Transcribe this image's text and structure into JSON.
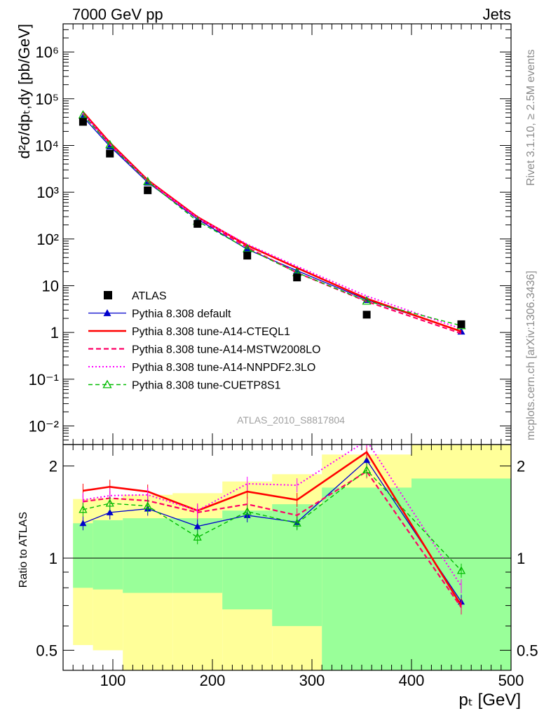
{
  "header": {
    "left": "7000 GeV pp",
    "right": "Jets"
  },
  "side_labels": {
    "rivet": "Rivet 3.1.10, ≥ 2.5M events",
    "mcplots": "mcplots.cern.ch [arXiv:1306.3436]"
  },
  "analysis_id": "ATLAS_2010_S8817804",
  "chart_data": [
    {
      "type": "scatter",
      "panel": "main",
      "ylabel": "d²σ/dpₜ,dy [pb/GeV]",
      "yscale": "log",
      "ylim": [
        0.004,
        4000000
      ],
      "xlim": [
        50,
        500
      ],
      "y_tick_labels": [
        "10⁻²",
        "10⁻¹",
        "1",
        "10",
        "10²",
        "10³",
        "10⁴",
        "10⁵",
        "10⁶"
      ],
      "x": [
        70,
        97,
        135,
        185,
        235,
        285,
        355,
        450
      ],
      "legend_position": "lower-left",
      "series": [
        {
          "name": "ATLAS",
          "color": "#000000",
          "style": "data-square",
          "values": [
            32000,
            6700,
            1100,
            210,
            44,
            15,
            2.4,
            1.5
          ]
        },
        {
          "name": "Pythia 8.308 default",
          "color": "#0000cc",
          "style": "solid-triangle",
          "values": [
            41000,
            9600,
            1620,
            265,
            60,
            21,
            5.0,
            1.05
          ]
        },
        {
          "name": "Pythia 8.308 tune-A14-CTEQL1",
          "color": "#ff0000",
          "style": "solid-thick",
          "values": [
            52000,
            11500,
            1820,
            295,
            73,
            24,
            5.3,
            1.05
          ]
        },
        {
          "name": "Pythia 8.308 tune-A14-MSTW2008LO",
          "color": "#ff0066",
          "style": "dashed",
          "values": [
            47000,
            10600,
            1700,
            280,
            66,
            19,
            4.6,
            0.95
          ]
        },
        {
          "name": "Pythia 8.308 tune-A14-NNPDF2.3LO",
          "color": "#ff00ff",
          "style": "dotted",
          "values": [
            50000,
            10800,
            1760,
            285,
            77,
            26,
            6.0,
            1.2
          ]
        },
        {
          "name": "Pythia 8.308 tune-CUETP8S1",
          "color": "#00bb00",
          "style": "dashed-open-triangle",
          "values": [
            45000,
            10400,
            1700,
            240,
            62,
            19,
            4.7,
            1.4
          ]
        }
      ]
    },
    {
      "type": "line",
      "panel": "ratio",
      "ylabel": "Ratio to ATLAS",
      "xlabel": "pₜ [GeV]",
      "yscale": "log",
      "ylim": [
        0.43,
        2.35
      ],
      "xlim": [
        50,
        500
      ],
      "y_ticks": [
        0.5,
        1,
        2
      ],
      "y_tick_labels": [
        "0.5",
        "1",
        "2"
      ],
      "x_ticks": [
        100,
        200,
        300,
        400,
        500
      ],
      "x_tick_labels": [
        "100",
        "200",
        "300",
        "400",
        "500"
      ],
      "x": [
        70,
        97,
        135,
        185,
        235,
        285,
        355,
        450
      ],
      "bins": [
        [
          60,
          80
        ],
        [
          80,
          110
        ],
        [
          110,
          160
        ],
        [
          160,
          210
        ],
        [
          210,
          260
        ],
        [
          260,
          310
        ],
        [
          310,
          400
        ],
        [
          400,
          500
        ]
      ],
      "band_outer": [
        [
          0.52,
          1.56
        ],
        [
          0.5,
          1.57
        ],
        [
          0.43,
          1.61
        ],
        [
          0.42,
          1.63
        ],
        [
          0.4,
          1.78
        ],
        [
          0.4,
          1.88
        ],
        [
          0.4,
          2.18
        ],
        [
          0.4,
          2.35
        ]
      ],
      "band_inner": [
        [
          0.8,
          1.3
        ],
        [
          0.79,
          1.33
        ],
        [
          0.77,
          1.35
        ],
        [
          0.77,
          1.35
        ],
        [
          0.68,
          1.43
        ],
        [
          0.6,
          1.5
        ],
        [
          0.4,
          1.7
        ],
        [
          0.4,
          1.82
        ]
      ],
      "series": [
        {
          "name": "Pythia 8.308 default",
          "color": "#0000cc",
          "values": [
            1.3,
            1.41,
            1.45,
            1.27,
            1.38,
            1.31,
            2.09,
            0.72
          ]
        },
        {
          "name": "Pythia 8.308 tune-A14-CTEQL1",
          "color": "#ff0000",
          "values": [
            1.66,
            1.71,
            1.65,
            1.43,
            1.65,
            1.55,
            2.22,
            0.7
          ]
        },
        {
          "name": "Pythia 8.308 tune-A14-MSTW2008LO",
          "color": "#ff0066",
          "values": [
            1.53,
            1.57,
            1.54,
            1.41,
            1.5,
            1.38,
            1.92,
            0.69
          ]
        },
        {
          "name": "Pythia 8.308 tune-A14-NNPDF2.3LO",
          "color": "#ff00ff",
          "values": [
            1.55,
            1.6,
            1.61,
            1.43,
            1.75,
            1.73,
            2.42,
            0.81
          ]
        },
        {
          "name": "Pythia 8.308 tune-CUETP8S1",
          "color": "#00bb00",
          "values": [
            1.44,
            1.51,
            1.48,
            1.17,
            1.42,
            1.3,
            1.94,
            0.91
          ]
        }
      ]
    }
  ]
}
